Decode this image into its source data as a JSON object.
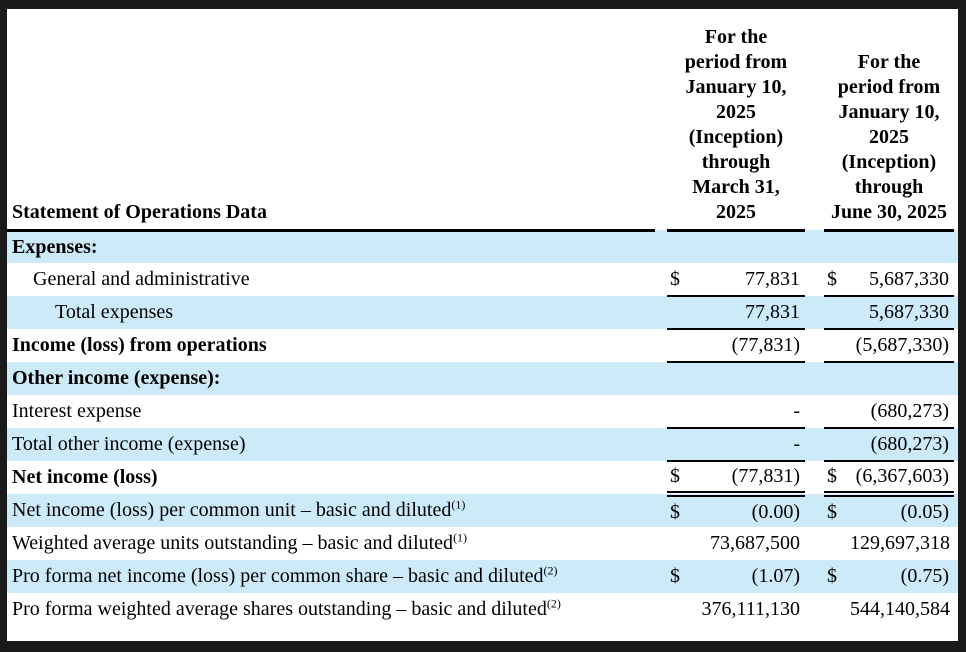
{
  "colors": {
    "shade": "#cdeaf9",
    "frame": "#1a1a1a"
  },
  "table": {
    "title": "Statement of Operations Data",
    "col_headers": [
      "For the\nperiod from\nJanuary 10,\n2025\n(Inception)\nthrough\nMarch 31,\n2025",
      "For the\nperiod from\nJanuary 10,\n2025\n(Inception)\nthrough\nJune 30, 2025"
    ],
    "rows": [
      {
        "label": "Expenses:",
        "sup": "",
        "bold": true,
        "shaded": true,
        "indent": 0,
        "d1": "",
        "v1": "",
        "d2": "",
        "v2": "",
        "underline": "none"
      },
      {
        "label": "General and administrative",
        "sup": "",
        "bold": false,
        "shaded": false,
        "indent": 1,
        "d1": "$",
        "v1": "77,831",
        "d2": "$",
        "v2": "5,687,330",
        "underline": "single"
      },
      {
        "label": "Total expenses",
        "sup": "",
        "bold": false,
        "shaded": true,
        "indent": 2,
        "d1": "",
        "v1": "77,831",
        "d2": "",
        "v2": "5,687,330",
        "underline": "single"
      },
      {
        "label": "Income (loss) from operations",
        "sup": "",
        "bold": true,
        "shaded": false,
        "indent": 0,
        "d1": "",
        "v1": "(77,831)",
        "d2": "",
        "v2": "(5,687,330)",
        "underline": "single"
      },
      {
        "label": "Other income (expense):",
        "sup": "",
        "bold": true,
        "shaded": true,
        "indent": 0,
        "d1": "",
        "v1": "",
        "d2": "",
        "v2": "",
        "underline": "none"
      },
      {
        "label": "Interest expense",
        "sup": "",
        "bold": false,
        "shaded": false,
        "indent": 0,
        "d1": "",
        "v1": "-",
        "d2": "",
        "v2": "(680,273)",
        "underline": "single"
      },
      {
        "label": "Total other income (expense)",
        "sup": "",
        "bold": false,
        "shaded": true,
        "indent": 0,
        "d1": "",
        "v1": "-",
        "d2": "",
        "v2": "(680,273)",
        "underline": "single"
      },
      {
        "label": "Net income (loss)",
        "sup": "",
        "bold": true,
        "shaded": false,
        "indent": 0,
        "d1": "$",
        "v1": "(77,831)",
        "d2": "$",
        "v2": "(6,367,603)",
        "underline": "double"
      },
      {
        "label": "Net income (loss) per common unit – basic and diluted",
        "sup": "(1)",
        "bold": false,
        "shaded": true,
        "indent": 0,
        "d1": "$",
        "v1": "(0.00)",
        "d2": "$",
        "v2": "(0.05)",
        "underline": "none"
      },
      {
        "label": "Weighted average units outstanding – basic and diluted",
        "sup": "(1)",
        "bold": false,
        "shaded": false,
        "indent": 0,
        "d1": "",
        "v1": "73,687,500",
        "d2": "",
        "v2": "129,697,318",
        "underline": "none"
      },
      {
        "label": "Pro forma net income (loss) per common share – basic and diluted",
        "sup": "(2)",
        "bold": false,
        "shaded": true,
        "indent": 0,
        "d1": "$",
        "v1": "(1.07)",
        "d2": "$",
        "v2": "(0.75)",
        "underline": "none"
      },
      {
        "label": "Pro forma weighted average shares outstanding – basic and diluted",
        "sup": "(2)",
        "bold": false,
        "shaded": false,
        "indent": 0,
        "d1": "",
        "v1": "376,111,130",
        "d2": "",
        "v2": "544,140,584",
        "underline": "none"
      }
    ]
  }
}
